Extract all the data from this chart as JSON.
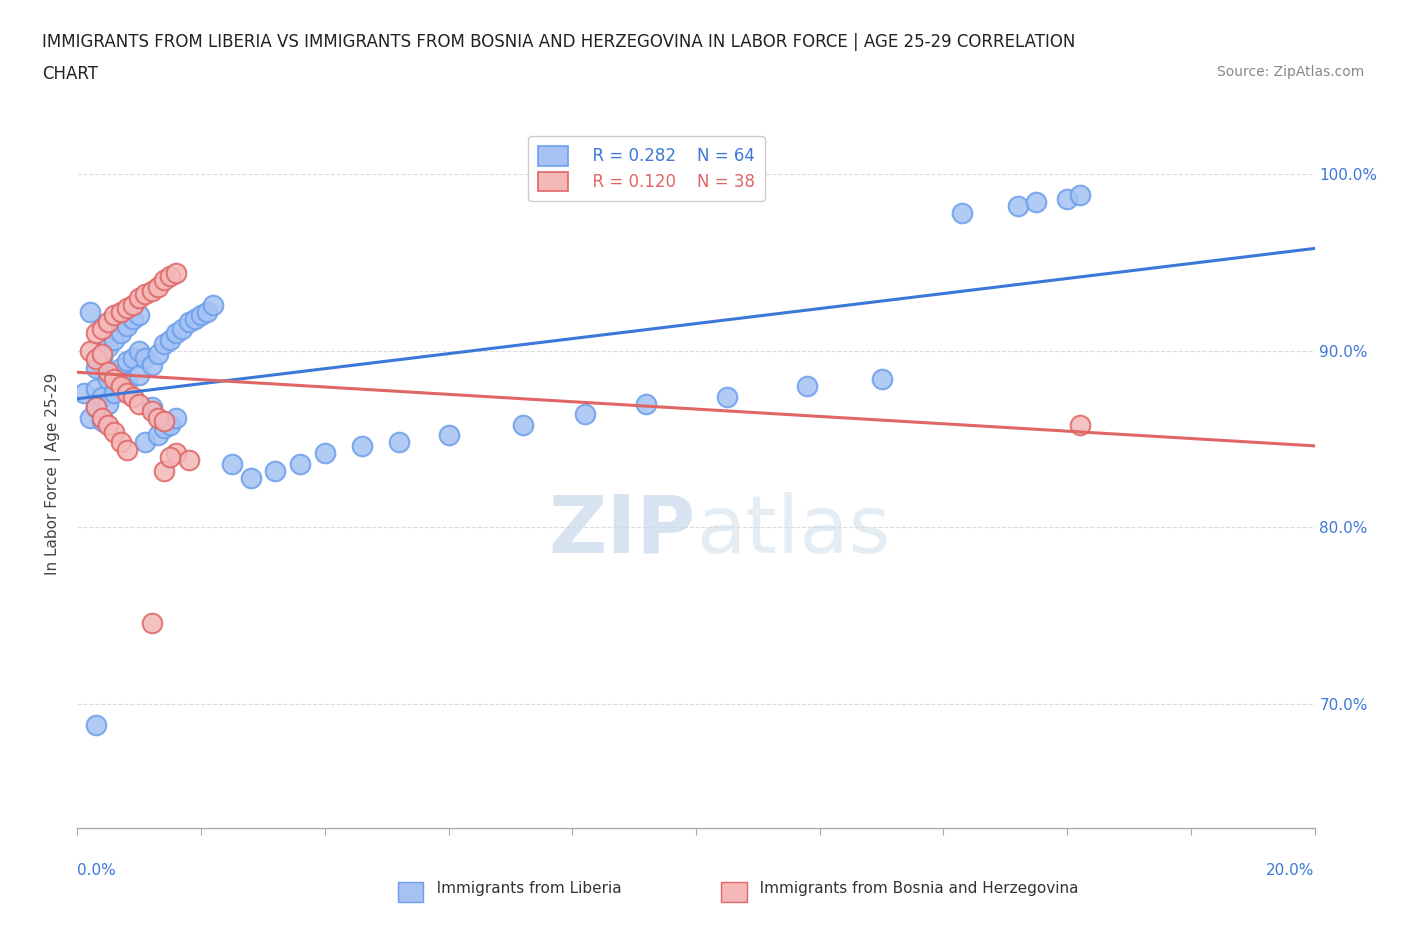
{
  "title_line1": "IMMIGRANTS FROM LIBERIA VS IMMIGRANTS FROM BOSNIA AND HERZEGOVINA IN LABOR FORCE | AGE 25-29 CORRELATION",
  "title_line2": "CHART",
  "source_text": "Source: ZipAtlas.com",
  "ylabel_label": "In Labor Force | Age 25-29",
  "liberia_color": "#a4c2f4",
  "liberia_edge_color": "#6d9eeb",
  "bosnia_color": "#f4b8b8",
  "bosnia_edge_color": "#e06666",
  "liberia_line_color": "#3c78d8",
  "bosnia_line_color": "#e06666",
  "legend_R1": "R = 0.282",
  "legend_N1": "N = 64",
  "legend_R2": "R = 0.120",
  "legend_N2": "N = 38",
  "watermark_zip": "ZIP",
  "watermark_atlas": "atlas",
  "background_color": "#ffffff",
  "grid_color": "#dddddd",
  "xlim": [
    0.0,
    0.2
  ],
  "ylim": [
    0.63,
    1.03
  ],
  "y_ticks": [
    0.7,
    0.8,
    0.9,
    1.0
  ],
  "title_fontsize": 12,
  "source_fontsize": 10,
  "ylabel_fontsize": 11,
  "tick_fontsize": 11,
  "legend_fontsize": 12,
  "watermark_fontsize": 58,
  "lib_x": [
    0.001,
    0.002,
    0.002,
    0.003,
    0.003,
    0.003,
    0.004,
    0.004,
    0.004,
    0.005,
    0.005,
    0.005,
    0.006,
    0.006,
    0.006,
    0.007,
    0.007,
    0.007,
    0.008,
    0.008,
    0.008,
    0.009,
    0.009,
    0.01,
    0.01,
    0.01,
    0.011,
    0.011,
    0.012,
    0.012,
    0.013,
    0.013,
    0.014,
    0.014,
    0.015,
    0.015,
    0.016,
    0.016,
    0.017,
    0.018,
    0.019,
    0.02,
    0.021,
    0.022,
    0.025,
    0.028,
    0.032,
    0.036,
    0.04,
    0.046,
    0.052,
    0.06,
    0.072,
    0.082,
    0.092,
    0.105,
    0.118,
    0.13,
    0.143,
    0.152,
    0.155,
    0.16,
    0.162,
    0.003
  ],
  "lib_y": [
    0.876,
    0.922,
    0.862,
    0.89,
    0.878,
    0.868,
    0.896,
    0.874,
    0.86,
    0.902,
    0.884,
    0.87,
    0.906,
    0.886,
    0.876,
    0.91,
    0.89,
    0.88,
    0.914,
    0.894,
    0.882,
    0.918,
    0.896,
    0.92,
    0.9,
    0.886,
    0.896,
    0.848,
    0.892,
    0.868,
    0.898,
    0.852,
    0.904,
    0.856,
    0.906,
    0.858,
    0.91,
    0.862,
    0.912,
    0.916,
    0.918,
    0.92,
    0.922,
    0.926,
    0.836,
    0.828,
    0.832,
    0.836,
    0.842,
    0.846,
    0.848,
    0.852,
    0.858,
    0.864,
    0.87,
    0.874,
    0.88,
    0.884,
    0.978,
    0.982,
    0.984,
    0.986,
    0.988,
    0.688
  ],
  "bos_x": [
    0.002,
    0.003,
    0.003,
    0.004,
    0.004,
    0.005,
    0.005,
    0.006,
    0.006,
    0.007,
    0.007,
    0.008,
    0.008,
    0.009,
    0.009,
    0.01,
    0.01,
    0.011,
    0.012,
    0.012,
    0.013,
    0.013,
    0.014,
    0.014,
    0.015,
    0.016,
    0.003,
    0.004,
    0.005,
    0.006,
    0.007,
    0.008,
    0.016,
    0.018,
    0.014,
    0.012,
    0.162,
    0.015
  ],
  "bos_y": [
    0.9,
    0.91,
    0.895,
    0.912,
    0.898,
    0.916,
    0.888,
    0.92,
    0.884,
    0.922,
    0.88,
    0.924,
    0.876,
    0.926,
    0.874,
    0.93,
    0.87,
    0.932,
    0.934,
    0.866,
    0.936,
    0.862,
    0.94,
    0.86,
    0.942,
    0.944,
    0.868,
    0.862,
    0.858,
    0.854,
    0.848,
    0.844,
    0.842,
    0.838,
    0.832,
    0.746,
    0.858,
    0.84
  ]
}
